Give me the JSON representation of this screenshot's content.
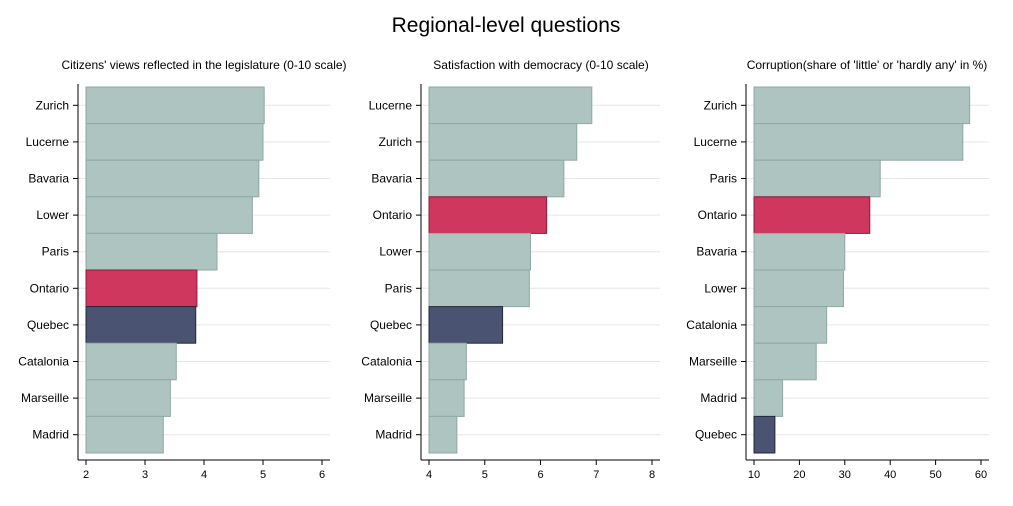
{
  "title": "Regional-level questions",
  "colors": {
    "default_bar": "#adc4c0",
    "default_edge": "#8fa9a5",
    "highlight_red": "#cf375e",
    "highlight_navy": "#4a5472",
    "axis": "#000000",
    "grid": "#e6e6e6"
  },
  "chart_data": [
    {
      "type": "bar",
      "orientation": "horizontal",
      "title": "Citizens' views reflected in the legislature (0-10 scale)",
      "categories": [
        "Zurich",
        "Lucerne",
        "Bavaria",
        "Lower",
        "Paris",
        "Ontario",
        "Quebec",
        "Catalonia",
        "Marseille",
        "Madrid"
      ],
      "values": [
        5.02,
        5.0,
        4.93,
        4.82,
        4.22,
        3.88,
        3.86,
        3.53,
        3.43,
        3.31
      ],
      "highlight": {
        "Ontario": "red",
        "Quebec": "navy"
      },
      "xlim": [
        2,
        6
      ],
      "xticks": [
        2,
        3,
        4,
        5,
        6
      ],
      "base": 2
    },
    {
      "type": "bar",
      "orientation": "horizontal",
      "title": "Satisfaction with democracy (0-10 scale)",
      "categories": [
        "Lucerne",
        "Zurich",
        "Bavaria",
        "Ontario",
        "Lower",
        "Paris",
        "Quebec",
        "Catalonia",
        "Marseille",
        "Madrid"
      ],
      "values": [
        6.92,
        6.65,
        6.42,
        6.11,
        5.82,
        5.8,
        5.32,
        4.67,
        4.63,
        4.5
      ],
      "highlight": {
        "Ontario": "red",
        "Quebec": "navy"
      },
      "xlim": [
        4,
        8
      ],
      "xticks": [
        4,
        5,
        6,
        7,
        8
      ],
      "base": 4
    },
    {
      "type": "bar",
      "orientation": "horizontal",
      "title": "Corruption(share of 'little' or 'hardly any' in %)",
      "categories": [
        "Zurich",
        "Lucerne",
        "Paris",
        "Ontario",
        "Bavaria",
        "Lower",
        "Catalonia",
        "Marseille",
        "Madrid",
        "Quebec"
      ],
      "values": [
        57.5,
        56.0,
        37.8,
        35.5,
        30.0,
        29.7,
        26.0,
        23.7,
        16.3,
        14.6
      ],
      "highlight": {
        "Ontario": "red",
        "Quebec": "navy"
      },
      "xlim": [
        10,
        60
      ],
      "xticks": [
        10,
        20,
        30,
        40,
        50,
        60
      ],
      "base": 10
    }
  ]
}
